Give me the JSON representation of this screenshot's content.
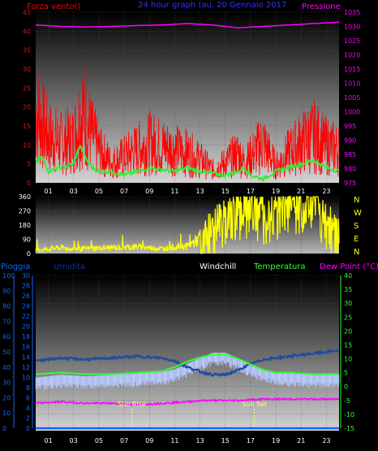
{
  "colors": {
    "wind": "#ff0000",
    "gust": "#33ee33",
    "pressure": "#ff00ff",
    "direction": "#ffff00",
    "rain": "#1166ff",
    "humidity": "#0a3a8a",
    "windchill": "#ffffff",
    "temperature": "#33ff33",
    "humidity_line": "#1e4e9e",
    "windchill_line": "#b8c8ff",
    "dewpoint": "#ff00ff",
    "sun": "#ffff66",
    "title": "#3333ff"
  },
  "top_panel": {
    "left_title": "Forza vento",
    "left_title_suffix": "()",
    "center_title": "24 hour graph (au.  20 Gennaio 2017",
    "right_title": "Pressione"
  },
  "dir_panel": {
    "compass": [
      "N",
      "W",
      "S",
      "E",
      "N"
    ]
  },
  "bottom_panel": {
    "headers": [
      "Pioggia",
      "Umidita",
      "Windchill",
      "Temperatura",
      "Dew Point (°C)"
    ],
    "sun_rise": "Sun Rise",
    "sun_set": "Sun Set"
  },
  "chart_data": [
    {
      "type": "line",
      "title": "24 hour graph (au.  20 Gennaio 2017",
      "xlabel": "",
      "ylabel": "Forza vento",
      "x_ticks": [
        "01",
        "03",
        "05",
        "07",
        "09",
        "11",
        "13",
        "15",
        "17",
        "19",
        "21",
        "23"
      ],
      "x_range": [
        0,
        24
      ],
      "y_left": {
        "label": "Forza vento",
        "range": [
          0,
          45
        ],
        "ticks": [
          0,
          5,
          10,
          15,
          20,
          25,
          30,
          35,
          40,
          45
        ]
      },
      "y_right": {
        "label": "Pressione",
        "range": [
          975,
          1035
        ],
        "ticks": [
          975,
          980,
          985,
          990,
          995,
          1000,
          1005,
          1010,
          1015,
          1020,
          1025,
          1030,
          1035
        ]
      },
      "series": [
        {
          "name": "Forza vento",
          "axis": "left",
          "style": "spiky",
          "x": [
            0,
            1,
            2,
            3,
            3.7,
            4,
            5,
            6,
            7,
            8,
            9,
            10,
            11,
            12,
            13,
            14,
            15,
            16,
            16.5,
            17,
            18,
            19,
            20,
            21,
            22,
            23,
            24
          ],
          "values": [
            22,
            14,
            12,
            13,
            22,
            18,
            10,
            6,
            8,
            10,
            12,
            11,
            10,
            9,
            7,
            4,
            6,
            9,
            6,
            8,
            12,
            5,
            9,
            12,
            14,
            11,
            10
          ]
        },
        {
          "name": "Raffica",
          "axis": "left",
          "style": "smooth",
          "x": [
            0,
            0.5,
            1,
            2,
            3,
            3.5,
            4,
            4.5,
            5,
            6,
            7,
            8,
            9,
            10,
            11,
            12,
            13,
            14,
            15,
            16,
            16.5,
            17,
            18,
            19,
            20,
            21,
            22,
            23,
            24
          ],
          "values": [
            6,
            7,
            3,
            4,
            5,
            10,
            6,
            4,
            3,
            3,
            2,
            3,
            4,
            3.5,
            3,
            4,
            3,
            2.5,
            2,
            3,
            4,
            2,
            1,
            3,
            4,
            5,
            6,
            4,
            3
          ]
        },
        {
          "name": "Pressione",
          "axis": "right",
          "x": [
            0,
            2,
            4,
            6,
            8,
            10,
            12,
            14,
            16,
            18,
            20,
            22,
            24
          ],
          "values": [
            1030.5,
            1030,
            1029.8,
            1030,
            1030.3,
            1030.5,
            1031,
            1030.5,
            1029.5,
            1030,
            1030.5,
            1031,
            1031.5
          ]
        }
      ]
    },
    {
      "type": "line",
      "title": "",
      "xlabel": "",
      "ylabel": "",
      "x_range": [
        0,
        24
      ],
      "y_left": {
        "range": [
          0,
          360
        ],
        "ticks": [
          0,
          90,
          180,
          270,
          360
        ]
      },
      "series": [
        {
          "name": "Direzione vento",
          "style": "spiky",
          "x": [
            0,
            2,
            3,
            4,
            6,
            8,
            10,
            12,
            13,
            14,
            15,
            16,
            17,
            18,
            19,
            20,
            21,
            22,
            23,
            24
          ],
          "values": [
            20,
            35,
            25,
            30,
            35,
            40,
            30,
            45,
            90,
            160,
            250,
            280,
            300,
            250,
            270,
            330,
            300,
            360,
            200,
            150
          ]
        }
      ]
    },
    {
      "type": "line",
      "title": "",
      "xlabel": "",
      "ylabel": "",
      "x_ticks": [
        "01",
        "03",
        "05",
        "07",
        "09",
        "11",
        "13",
        "15",
        "17",
        "19",
        "21",
        "23"
      ],
      "x_range": [
        0,
        24
      ],
      "y_axes": {
        "humidity": {
          "label": "Umidita",
          "range": [
            0,
            100
          ],
          "ticks": [
            0,
            10,
            20,
            30,
            40,
            50,
            60,
            70,
            80,
            90,
            100
          ]
        },
        "rain": {
          "label": "Pioggia",
          "range": [
            0,
            30
          ],
          "ticks": [
            0,
            2,
            4,
            6,
            8,
            10,
            12,
            14,
            16,
            18,
            20,
            22,
            24,
            26,
            28,
            30
          ]
        },
        "temp": {
          "label": "Temperatura",
          "range": [
            -15,
            40
          ],
          "ticks": [
            -15,
            -10,
            -5,
            0,
            5,
            10,
            15,
            20,
            25,
            30,
            35,
            40
          ]
        }
      },
      "series": [
        {
          "name": "Pioggia",
          "axis": "rain",
          "x": [
            0,
            24
          ],
          "values": [
            0,
            0
          ]
        },
        {
          "name": "Umidita",
          "axis": "humidity",
          "x": [
            0,
            2,
            4,
            6,
            8,
            10,
            11,
            12,
            13,
            14,
            15,
            16,
            17,
            18,
            19,
            20,
            22,
            24
          ],
          "values": [
            44,
            46,
            45,
            46,
            47,
            46,
            44,
            40,
            37,
            35,
            35,
            38,
            42,
            45,
            46,
            47,
            49,
            51
          ]
        },
        {
          "name": "Windchill",
          "axis": "temp",
          "x": [
            0,
            2,
            4,
            6,
            8,
            10,
            11,
            12,
            13,
            14,
            15,
            16,
            17,
            18,
            19,
            20,
            22,
            24
          ],
          "values": [
            2,
            3,
            2.5,
            3,
            3.5,
            4,
            5,
            7,
            9,
            11,
            11,
            9,
            7,
            5,
            4,
            3.5,
            3,
            3
          ]
        },
        {
          "name": "Temperatura",
          "axis": "temp",
          "x": [
            0,
            2,
            4,
            6,
            8,
            10,
            11,
            12,
            13,
            14,
            15,
            16,
            17,
            18,
            19,
            20,
            22,
            24
          ],
          "values": [
            4.5,
            5,
            4.5,
            4.5,
            5,
            5.5,
            7,
            9,
            10.5,
            11.5,
            11.5,
            10,
            8,
            6,
            5,
            5,
            4.5,
            4.5
          ]
        },
        {
          "name": "Dew Point",
          "axis": "temp",
          "x": [
            0,
            2,
            4,
            6,
            8,
            10,
            12,
            13,
            14,
            16,
            18,
            20,
            22,
            24
          ],
          "values": [
            -6,
            -5.5,
            -6,
            -6,
            -6.5,
            -6,
            -5.5,
            -5,
            -5,
            -5,
            -4.5,
            -4.5,
            -4.5,
            -4.5
          ]
        }
      ],
      "annotations": [
        {
          "text": "Sun Rise",
          "x": 7.6
        },
        {
          "text": "Sun Set",
          "x": 17.3
        }
      ]
    }
  ]
}
